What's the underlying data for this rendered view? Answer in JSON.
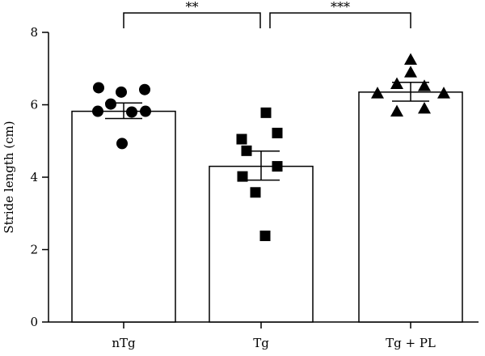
{
  "chart_data": {
    "type": "bar",
    "ylabel": "Stride length (cm)",
    "ylim": [
      0,
      8
    ],
    "yticks": [
      "0",
      "2",
      "4",
      "6",
      "8"
    ],
    "grid": false,
    "categories": [
      "nTg",
      "Tg",
      "Tg + PL"
    ],
    "values": [
      5.82,
      4.3,
      6.35
    ],
    "errors": [
      [
        5.62,
        6.05
      ],
      [
        3.92,
        4.72
      ],
      [
        6.1,
        6.62
      ]
    ],
    "points": [
      {
        "category": "nTg",
        "marker": "circle",
        "values": [
          6.47,
          6.35,
          6.42,
          5.82,
          6.02,
          5.8,
          5.82,
          4.93
        ]
      },
      {
        "category": "Tg",
        "marker": "square",
        "values": [
          5.78,
          5.05,
          5.22,
          4.73,
          4.3,
          4.02,
          3.58,
          2.38
        ]
      },
      {
        "category": "Tg + PL",
        "marker": "triangle",
        "values": [
          7.25,
          6.9,
          6.58,
          6.52,
          6.32,
          6.32,
          5.82,
          5.9
        ]
      }
    ],
    "significance": [
      {
        "from": "nTg",
        "to": "Tg",
        "label": "**"
      },
      {
        "from": "Tg",
        "to": "Tg + PL",
        "label": "***"
      }
    ],
    "colors": {
      "bar_fill": "#ffffff",
      "stroke": "#000000",
      "marker": "#000000"
    }
  }
}
